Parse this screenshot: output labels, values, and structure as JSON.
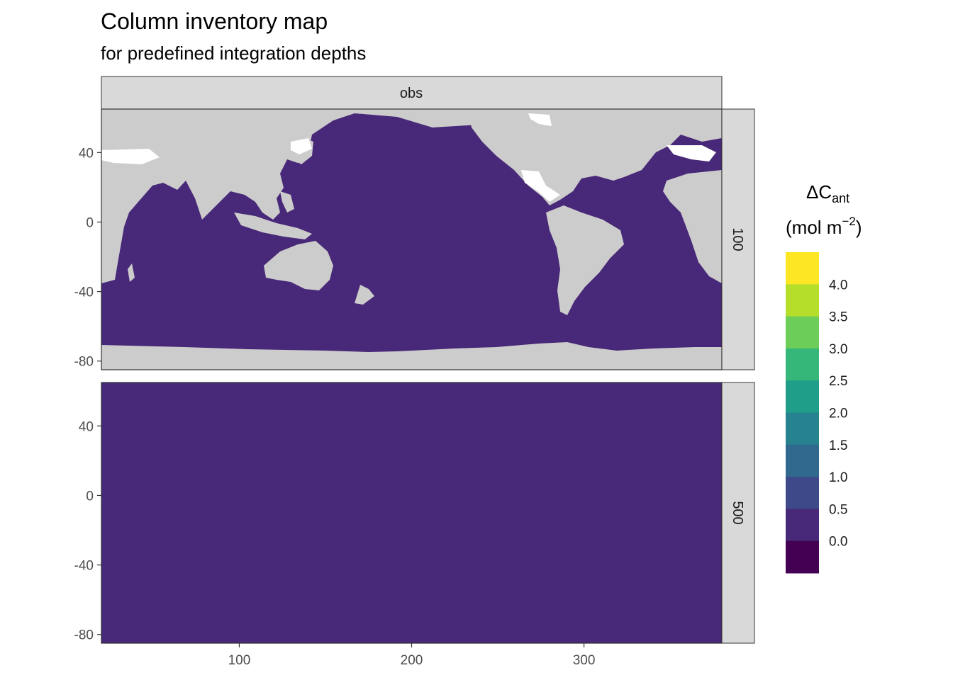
{
  "chart_data": {
    "type": "heatmap",
    "title": "Column inventory map",
    "subtitle": "for predefined integration depths",
    "facet_column": "obs",
    "facet_rows": [
      "100",
      "500"
    ],
    "x_ticks": [
      100,
      200,
      300
    ],
    "y_ticks": [
      40,
      0,
      -40,
      -80
    ],
    "xlim": [
      20,
      380
    ],
    "ylim": [
      -85,
      65
    ],
    "legend": {
      "title_main": "ΔC",
      "title_sub": "ant",
      "title_unit_pre": "(mol m",
      "title_unit_sup": "−2",
      "title_unit_post": ")",
      "labels": [
        "4.0",
        "3.5",
        "3.0",
        "2.5",
        "2.0",
        "1.5",
        "1.0",
        "0.5",
        "0.0"
      ],
      "colors": [
        "#FDE725",
        "#B5DE2B",
        "#6DCD59",
        "#35B779",
        "#1F9E89",
        "#26828E",
        "#31688E",
        "#3E4989",
        "#482878",
        "#440154"
      ],
      "position": "right"
    },
    "colors": {
      "ocean": "#482878",
      "land": "#CCCCCC",
      "missing": "#FFFFFF",
      "strip": "#D9D9D9",
      "border": "#333333"
    },
    "panels": [
      {
        "row": "100",
        "ocean_value_range": [
          0.0,
          0.5
        ]
      },
      {
        "row": "500",
        "ocean_value_range": [
          0.0,
          0.5
        ]
      }
    ]
  }
}
